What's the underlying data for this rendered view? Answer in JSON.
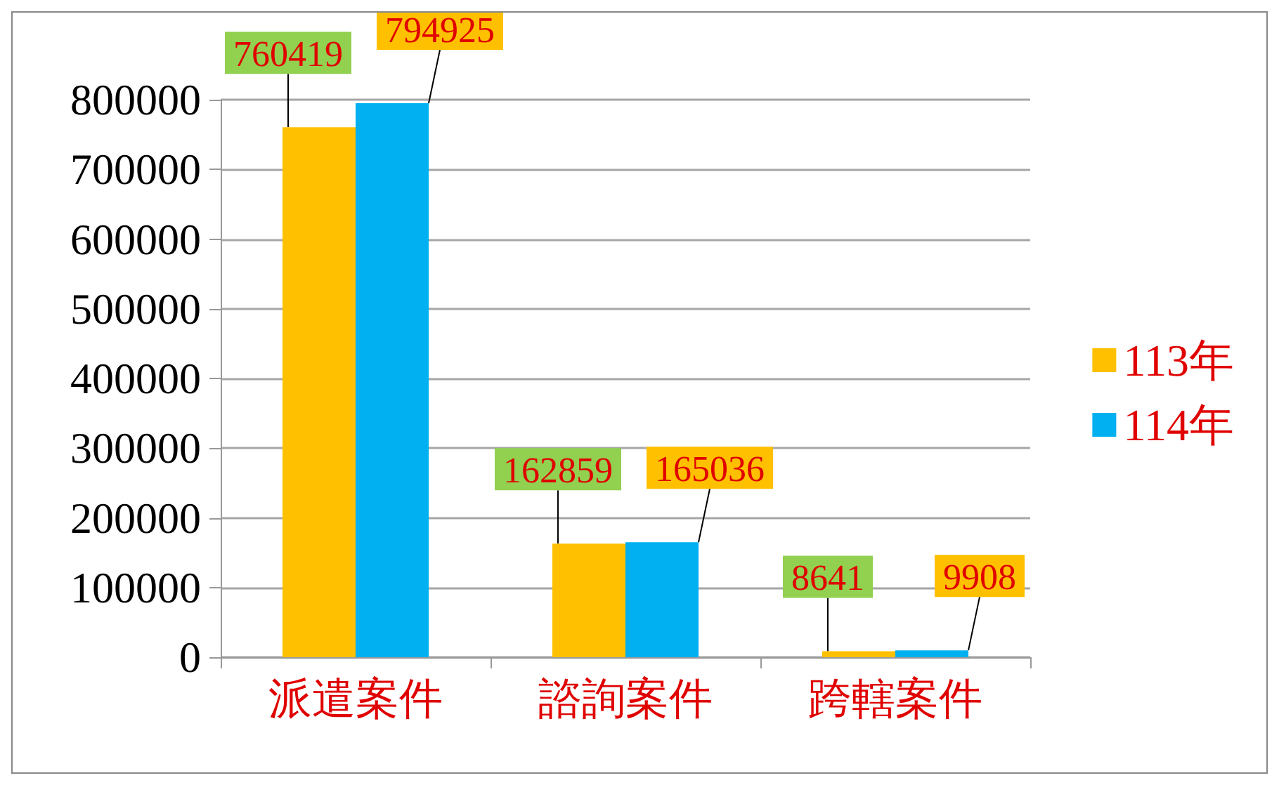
{
  "chart_data": {
    "type": "bar",
    "categories": [
      "派遣案件",
      "諮詢案件",
      "跨轄案件"
    ],
    "series": [
      {
        "name": "113年",
        "color": "#ffc000",
        "values": [
          760419,
          162859,
          8641
        ]
      },
      {
        "name": "114年",
        "color": "#00b0f0",
        "values": [
          794925,
          165036,
          9908
        ]
      }
    ],
    "ylim": [
      0,
      800000
    ],
    "yticks": [
      0,
      100000,
      200000,
      300000,
      400000,
      500000,
      600000,
      700000,
      800000
    ],
    "grid": "y",
    "legend": "right",
    "data_labels": true
  }
}
